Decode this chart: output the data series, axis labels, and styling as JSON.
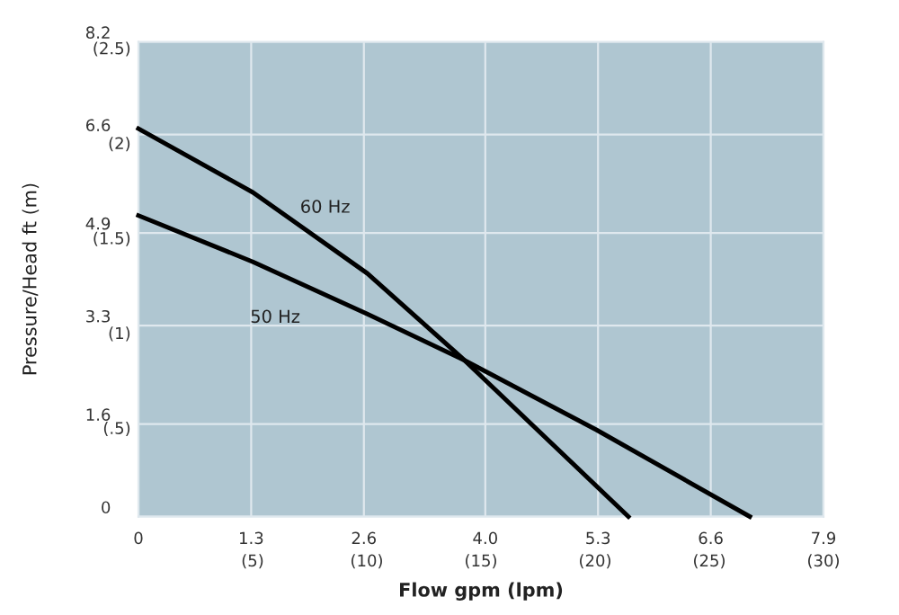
{
  "chart_data": {
    "type": "line",
    "xlabel": "Flow gpm (lpm)",
    "ylabel": "Pressure/Head ft (m)",
    "series": [
      {
        "name": "60 Hz",
        "color": "#000000",
        "x": [
          0,
          1.32,
          2.64,
          3.76,
          5.65
        ],
        "values": [
          6.7,
          5.6,
          4.2,
          2.7,
          0
        ]
      },
      {
        "name": "50 Hz",
        "color": "#000000",
        "x": [
          0,
          1.32,
          2.64,
          3.76,
          5.28,
          7.05
        ],
        "values": [
          5.2,
          4.4,
          3.5,
          2.7,
          1.5,
          0
        ]
      }
    ],
    "xlim": [
      0,
      7.9
    ],
    "ylim": [
      0,
      8.2
    ],
    "xticks": [
      0,
      1.3,
      2.6,
      {
        "value": 4,
        "label": "4.0"
      },
      5.3,
      6.6,
      7.9
    ],
    "yticks": [
      0,
      1.6,
      3.3,
      4.9,
      6.6,
      8.2
    ],
    "x2lim": [
      0,
      30
    ],
    "x2ticks": [
      {
        "value": 5,
        "label": "(5)"
      },
      {
        "value": 10,
        "label": "(10)"
      },
      {
        "value": 15,
        "label": "(15)"
      },
      {
        "value": 20,
        "label": "(20)"
      },
      {
        "value": 25,
        "label": "(25)"
      },
      {
        "value": 30,
        "label": "(30)"
      }
    ],
    "y2lim": [
      0,
      2.5
    ],
    "y2ticks": [
      {
        "value": 0.5,
        "label": "(.5)"
      },
      {
        "value": 1,
        "label": "(1)"
      },
      {
        "value": 1.5,
        "label": "(1.5)"
      },
      {
        "value": 2,
        "label": "(2)"
      },
      {
        "value": 2.5,
        "label": "(2.5)"
      }
    ],
    "grid": true,
    "legend": false,
    "marker": "none",
    "line_style": "solid"
  }
}
